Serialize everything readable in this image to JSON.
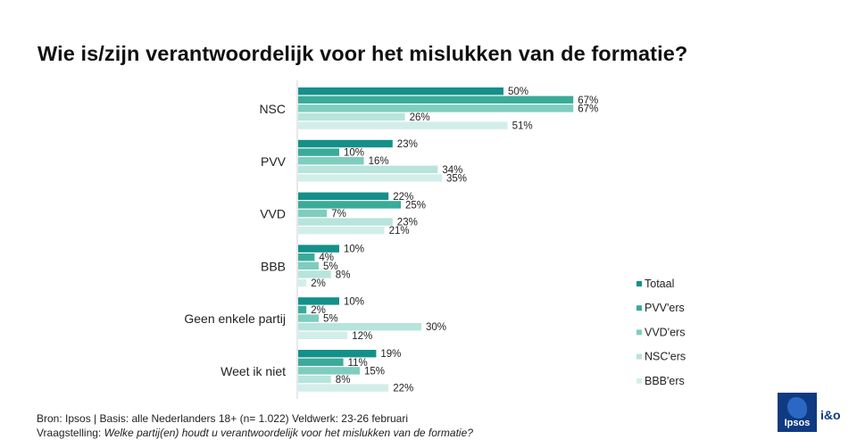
{
  "title": "Wie is/zijn verantwoordelijk voor het mislukken van de formatie?",
  "chart_data": {
    "type": "bar",
    "orientation": "horizontal",
    "categories": [
      "NSC",
      "PVV",
      "VVD",
      "BBB",
      "Geen enkele partij",
      "Weet ik niet"
    ],
    "series": [
      {
        "name": "Totaal",
        "color": "#14908a",
        "values": [
          50,
          23,
          22,
          10,
          10,
          19
        ],
        "labels": [
          "50%",
          "23%",
          "22%",
          "10%",
          "10%",
          "19%"
        ]
      },
      {
        "name": "PVV'ers",
        "color": "#3aab99",
        "values": [
          67,
          10,
          25,
          4,
          2,
          11
        ],
        "labels": [
          "67%",
          "10%",
          "25%",
          "4%",
          "2%",
          "11%"
        ]
      },
      {
        "name": "VVD'ers",
        "color": "#7ecdbf",
        "values": [
          67,
          16,
          7,
          5,
          5,
          15
        ],
        "labels": [
          "67%",
          "16%",
          "7%",
          "5%",
          "5%",
          "15%"
        ]
      },
      {
        "name": "NSC'ers",
        "color": "#b7e4dc",
        "values": [
          26,
          34,
          23,
          8,
          30,
          8
        ],
        "labels": [
          "26%",
          "34%",
          "23%",
          "8%",
          "30%",
          "8%"
        ]
      },
      {
        "name": "BBB'ers",
        "color": "#d3eeea",
        "values": [
          51,
          35,
          21,
          2,
          12,
          22
        ],
        "labels": [
          "51%",
          "35%",
          "21%",
          "2%",
          "12%",
          "22%"
        ]
      }
    ],
    "xlim": [
      0,
      100
    ],
    "grid": false,
    "legend_position": "right"
  },
  "footer": {
    "source": "Bron: Ipsos | Basis: alle Nederlanders  18+ (n= 1.022) Veldwerk: 23-26 februari",
    "question_prefix": "Vraagstelling:",
    "question_text": "Welke partij(en)  houdt u verantwoordelijk  voor  het mislukken van de formatie?"
  },
  "logo": {
    "brand": "Ipsos",
    "partner": "i&o",
    "color": "#0f3a82"
  }
}
